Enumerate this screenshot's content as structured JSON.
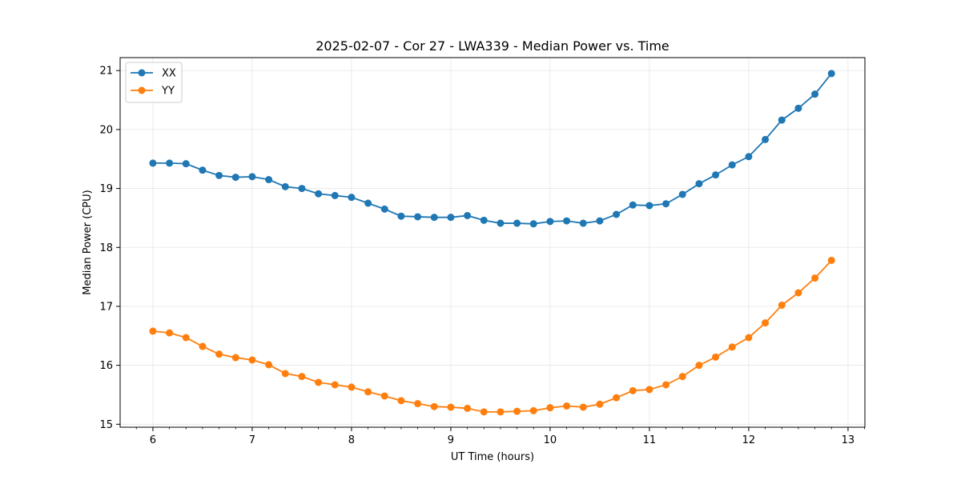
{
  "chart_data": {
    "type": "line",
    "title": "2025-02-07 - Cor 27 - LWA339 - Median Power vs. Time",
    "xlabel": "UT Time (hours)",
    "ylabel": "Median Power (CPU)",
    "xlim": [
      5.67,
      13.17
    ],
    "ylim": [
      14.95,
      21.22
    ],
    "xticks": [
      6,
      7,
      8,
      9,
      10,
      11,
      12,
      13
    ],
    "yticks": [
      15,
      16,
      17,
      18,
      19,
      20,
      21
    ],
    "grid": true,
    "legend_position": "top-left",
    "x": [
      6.0,
      6.1667,
      6.3333,
      6.5,
      6.6667,
      6.8333,
      7.0,
      7.1667,
      7.3333,
      7.5,
      7.6667,
      7.8333,
      8.0,
      8.1667,
      8.3333,
      8.5,
      8.6667,
      8.8333,
      9.0,
      9.1667,
      9.3333,
      9.5,
      9.6667,
      9.8333,
      10.0,
      10.1667,
      10.3333,
      10.5,
      10.6667,
      10.8333,
      11.0,
      11.1667,
      11.3333,
      11.5,
      11.6667,
      11.8333,
      12.0,
      12.1667,
      12.3333,
      12.5,
      12.6667,
      12.8333
    ],
    "series": [
      {
        "name": "XX",
        "color": "#1f77b4",
        "values": [
          19.43,
          19.43,
          19.42,
          19.31,
          19.22,
          19.19,
          19.2,
          19.15,
          19.03,
          19.0,
          18.91,
          18.88,
          18.85,
          18.75,
          18.65,
          18.53,
          18.52,
          18.51,
          18.51,
          18.54,
          18.46,
          18.41,
          18.41,
          18.4,
          18.44,
          18.45,
          18.41,
          18.45,
          18.56,
          18.72,
          18.71,
          18.74,
          18.9,
          19.08,
          19.23,
          19.4,
          19.54,
          19.83,
          20.16,
          20.36,
          20.6,
          20.95
        ]
      },
      {
        "name": "YY",
        "color": "#ff7f0e",
        "values": [
          16.58,
          16.55,
          16.47,
          16.32,
          16.19,
          16.13,
          16.09,
          16.01,
          15.86,
          15.81,
          15.71,
          15.67,
          15.63,
          15.55,
          15.48,
          15.4,
          15.35,
          15.3,
          15.29,
          15.27,
          15.21,
          15.21,
          15.22,
          15.23,
          15.28,
          15.31,
          15.29,
          15.34,
          15.45,
          15.57,
          15.59,
          15.67,
          15.81,
          16.0,
          16.14,
          16.31,
          16.47,
          16.72,
          17.02,
          17.23,
          17.48,
          17.78
        ]
      }
    ]
  }
}
